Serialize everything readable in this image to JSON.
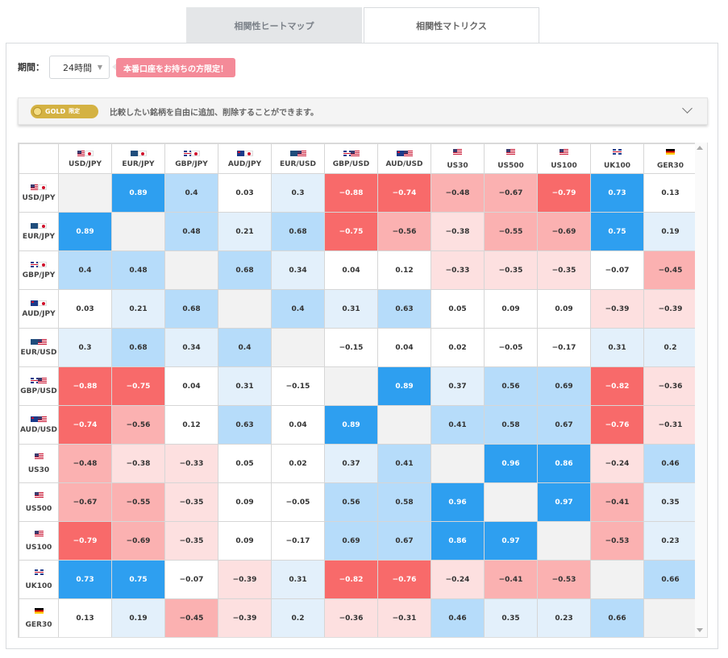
{
  "tabs": [
    {
      "label": "相関性ヒートマップ",
      "active": false
    },
    {
      "label": "相関性マトリクス",
      "active": true
    }
  ],
  "period": {
    "label": "期間：",
    "value": "24時間"
  },
  "promo": {
    "text": "本番口座をお持ちの方限定！"
  },
  "gold": {
    "badge": "GOLD",
    "limited": "限定",
    "text": "比較したい銘柄を自由に追加、削除することができます。"
  },
  "colors": {
    "strong_pos": "#2e9ff0",
    "pos": "#b6dcfa",
    "weak_pos": "#e3f0fb",
    "neutral": "#ffffff",
    "weak_neg": "#fde0e0",
    "neg": "#fbb1b1",
    "strong_neg": "#f86a6a",
    "diagonal": "#f2f2f2"
  },
  "matrix": {
    "instruments": [
      {
        "label": "USD/JPY",
        "flags": [
          "us",
          "jp"
        ]
      },
      {
        "label": "EUR/JPY",
        "flags": [
          "eu",
          "jp"
        ]
      },
      {
        "label": "GBP/JPY",
        "flags": [
          "gb",
          "jp"
        ]
      },
      {
        "label": "AUD/JPY",
        "flags": [
          "au",
          "jp"
        ]
      },
      {
        "label": "EUR/USD",
        "flags": [
          "eu",
          "us"
        ]
      },
      {
        "label": "GBP/USD",
        "flags": [
          "gb",
          "us"
        ]
      },
      {
        "label": "AUD/USD",
        "flags": [
          "au",
          "us"
        ]
      },
      {
        "label": "US30",
        "flags": [
          "us"
        ],
        "index": true
      },
      {
        "label": "US500",
        "flags": [
          "us"
        ],
        "index": true
      },
      {
        "label": "US100",
        "flags": [
          "us"
        ],
        "index": true
      },
      {
        "label": "UK100",
        "flags": [
          "gb"
        ],
        "index": true
      },
      {
        "label": "GER30",
        "flags": [
          "de"
        ],
        "index": true
      }
    ],
    "values": [
      [
        null,
        "0.89",
        "0.4",
        "0.03",
        "0.3",
        "−0.88",
        "−0.74",
        "−0.48",
        "−0.67",
        "−0.79",
        "0.73",
        "0.13"
      ],
      [
        "0.89",
        null,
        "0.48",
        "0.21",
        "0.68",
        "−0.75",
        "−0.56",
        "−0.38",
        "−0.55",
        "−0.69",
        "0.75",
        "0.19"
      ],
      [
        "0.4",
        "0.48",
        null,
        "0.68",
        "0.34",
        "0.04",
        "0.12",
        "−0.33",
        "−0.35",
        "−0.35",
        "−0.07",
        "−0.45"
      ],
      [
        "0.03",
        "0.21",
        "0.68",
        null,
        "0.4",
        "0.31",
        "0.63",
        "0.05",
        "0.09",
        "0.09",
        "−0.39",
        "−0.39"
      ],
      [
        "0.3",
        "0.68",
        "0.34",
        "0.4",
        null,
        "−0.15",
        "0.04",
        "0.02",
        "−0.05",
        "−0.17",
        "0.31",
        "0.2"
      ],
      [
        "−0.88",
        "−0.75",
        "0.04",
        "0.31",
        "−0.15",
        null,
        "0.89",
        "0.37",
        "0.56",
        "0.69",
        "−0.82",
        "−0.36"
      ],
      [
        "−0.74",
        "−0.56",
        "0.12",
        "0.63",
        "0.04",
        "0.89",
        null,
        "0.41",
        "0.58",
        "0.67",
        "−0.76",
        "−0.31"
      ],
      [
        "−0.48",
        "−0.38",
        "−0.33",
        "0.05",
        "0.02",
        "0.37",
        "0.41",
        null,
        "0.96",
        "0.86",
        "−0.24",
        "0.46"
      ],
      [
        "−0.67",
        "−0.55",
        "−0.35",
        "0.09",
        "−0.05",
        "0.56",
        "0.58",
        "0.96",
        null,
        "0.97",
        "−0.41",
        "0.35"
      ],
      [
        "−0.79",
        "−0.69",
        "−0.35",
        "0.09",
        "−0.17",
        "0.69",
        "0.67",
        "0.86",
        "0.97",
        null,
        "−0.53",
        "0.23"
      ],
      [
        "0.73",
        "0.75",
        "−0.07",
        "−0.39",
        "0.31",
        "−0.82",
        "−0.76",
        "−0.24",
        "−0.41",
        "−0.53",
        null,
        "0.66"
      ],
      [
        "0.13",
        "0.19",
        "−0.45",
        "−0.39",
        "0.2",
        "−0.36",
        "−0.31",
        "0.46",
        "0.35",
        "0.23",
        "0.66",
        null
      ]
    ]
  }
}
